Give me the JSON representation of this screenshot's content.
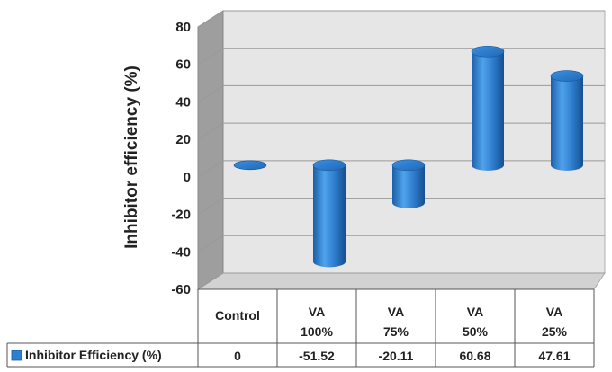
{
  "chart_data": {
    "type": "bar",
    "style": "3d-cylinder",
    "title": "",
    "ylabel": "Inhibitor efficiency (%)",
    "xlabel": "",
    "ylim": [
      -60,
      80
    ],
    "yticks": [
      -60,
      -40,
      -20,
      0,
      20,
      40,
      60,
      80
    ],
    "grid": true,
    "categories": [
      {
        "line1": "Control",
        "line2": ""
      },
      {
        "line1": "VA",
        "line2": "100%"
      },
      {
        "line1": "VA",
        "line2": "75%"
      },
      {
        "line1": "VA",
        "line2": "50%"
      },
      {
        "line1": "VA",
        "line2": "25%"
      }
    ],
    "series": [
      {
        "name": "Inhibitor Efficiency (%)",
        "values": [
          0,
          -51.52,
          -20.11,
          60.68,
          47.61
        ],
        "value_labels": [
          "0",
          "-51.52",
          "-20.11",
          "60.68",
          "47.61"
        ],
        "color": "#2e7fd0"
      }
    ],
    "legend": "data-table-row"
  }
}
